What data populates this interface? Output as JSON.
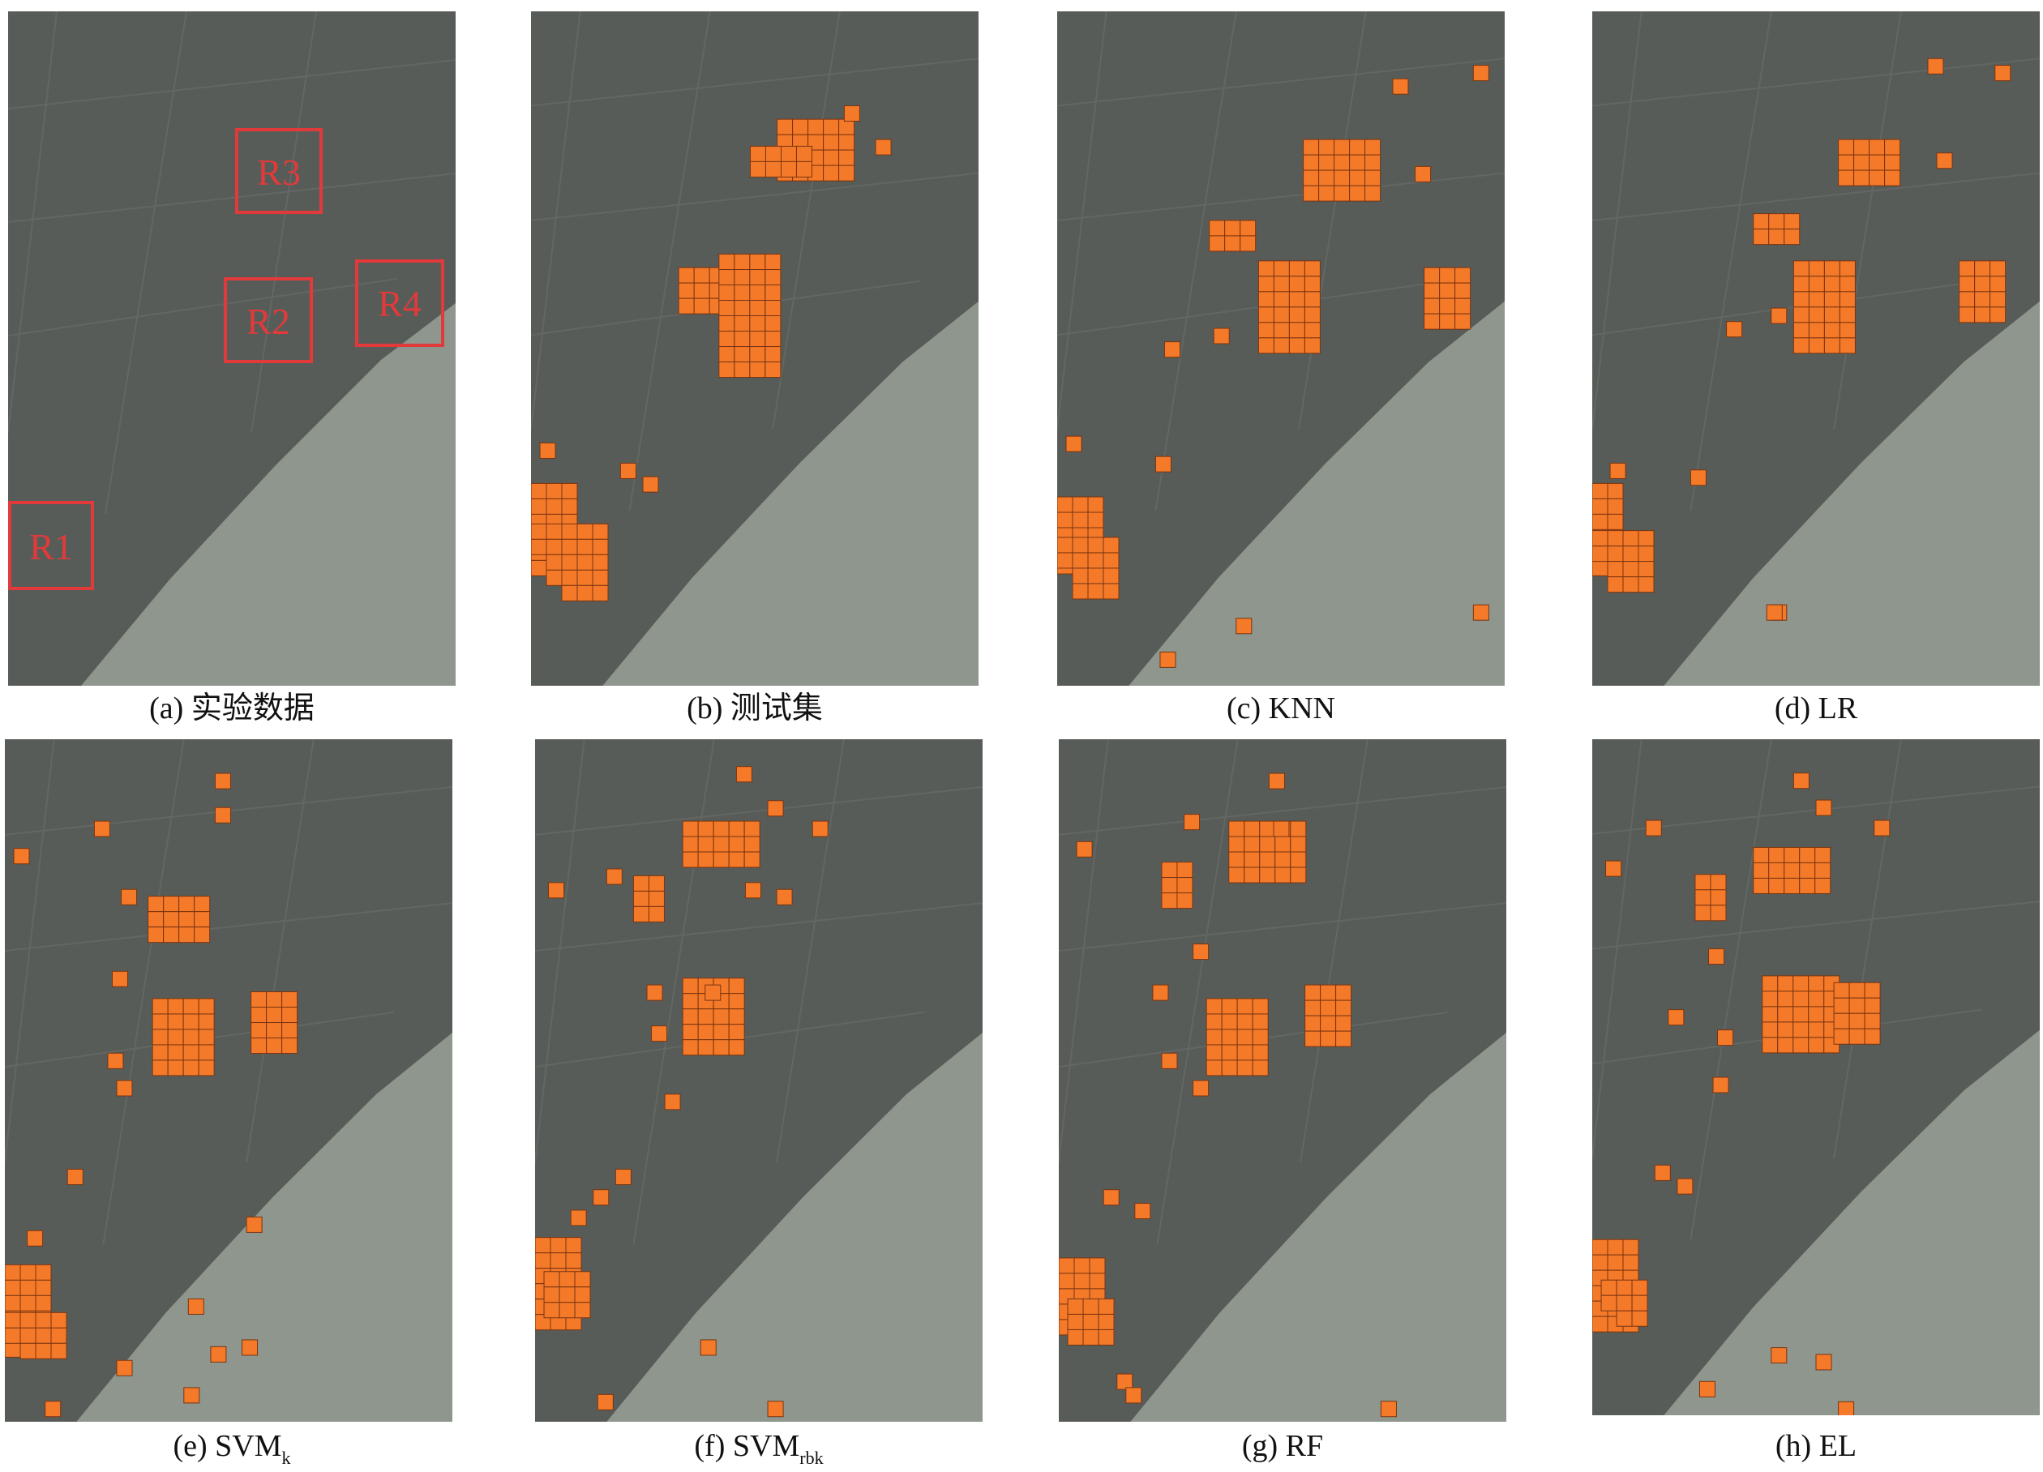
{
  "figure": {
    "colors": {
      "highlight_fill": "#f47a2a",
      "highlight_stroke": "#7a3410",
      "region_box": "#e23a3a",
      "river": "#8e968d",
      "urban": "#5b5e5a"
    },
    "panels": [
      {
        "id": "a",
        "caption_prefix": "(a) ",
        "caption_main": "实验数据",
        "caption_sub": "",
        "regions": [
          {
            "label": "R1"
          },
          {
            "label": "R2"
          },
          {
            "label": "R3"
          },
          {
            "label": "R4"
          }
        ]
      },
      {
        "id": "b",
        "caption_prefix": "(b) ",
        "caption_main": "测试集",
        "caption_sub": ""
      },
      {
        "id": "c",
        "caption_prefix": "(c) ",
        "caption_main": "KNN",
        "caption_sub": ""
      },
      {
        "id": "d",
        "caption_prefix": "(d) ",
        "caption_main": "LR",
        "caption_sub": ""
      },
      {
        "id": "e",
        "caption_prefix": "(e) ",
        "caption_main": "SVM",
        "caption_sub": "k"
      },
      {
        "id": "f",
        "caption_prefix": "(f) ",
        "caption_main": "SVM",
        "caption_sub": "rbk"
      },
      {
        "id": "g",
        "caption_prefix": "(g) ",
        "caption_main": "RF",
        "caption_sub": ""
      },
      {
        "id": "h",
        "caption_prefix": "(h) ",
        "caption_main": "EL",
        "caption_sub": ""
      }
    ]
  }
}
